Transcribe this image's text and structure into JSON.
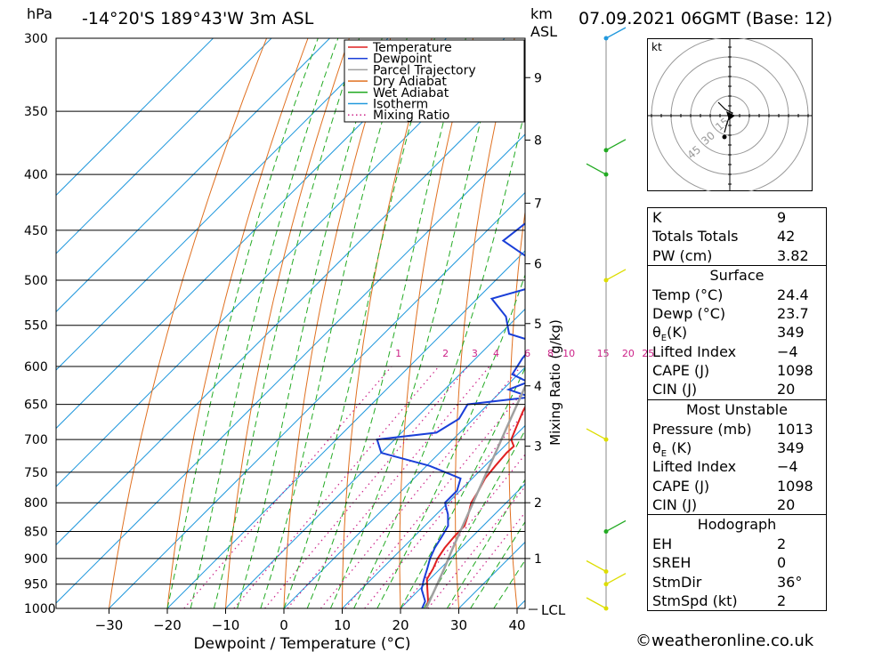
{
  "header": {
    "location": "-14°20'S  189°43'W  3m  ASL",
    "datetime": "07.09.2021  06GMT  (Base: 12)",
    "hpa_unit": "hPa",
    "km_unit": "km",
    "asl_unit": "ASL"
  },
  "chart_data": {
    "type": "line",
    "title": "",
    "xlabel": "Dewpoint / Temperature (°C)",
    "ylabel": "hPa",
    "y2label": "km ASL",
    "mixing_axis_label": "Mixing Ratio (g/kg)",
    "xlim": [
      -40,
      40
    ],
    "ylim": [
      1000,
      300
    ],
    "y_scale": "log",
    "skew": "temperature lines slanted 45°",
    "pressure_ticks": [
      300,
      350,
      400,
      450,
      500,
      550,
      600,
      650,
      700,
      750,
      800,
      850,
      900,
      950,
      1000
    ],
    "temp_ticks": [
      -30,
      -20,
      -10,
      0,
      10,
      20,
      30,
      40
    ],
    "km_ticks": [
      {
        "label": "1",
        "p": 900
      },
      {
        "label": "2",
        "p": 800
      },
      {
        "label": "3",
        "p": 710
      },
      {
        "label": "4",
        "p": 625
      },
      {
        "label": "5",
        "p": 548
      },
      {
        "label": "6",
        "p": 483
      },
      {
        "label": "7",
        "p": 425
      },
      {
        "label": "8",
        "p": 372
      },
      {
        "label": "9",
        "p": 326
      }
    ],
    "lcl_label": "LCL",
    "lcl_pressure": 1002,
    "mixing_ratio_labels": [
      "1",
      "2",
      "3",
      "4",
      "6",
      "8",
      "10",
      "15",
      "20",
      "25"
    ],
    "mixing_ratio_label_pressure": 590,
    "legend": {
      "position": "top-right",
      "entries": [
        {
          "label": "Temperature",
          "color": "#e02020",
          "style": "solid"
        },
        {
          "label": "Dewpoint",
          "color": "#1a3fd8",
          "style": "solid"
        },
        {
          "label": "Parcel Trajectory",
          "color": "#a0a0a0",
          "style": "solid"
        },
        {
          "label": "Dry Adiabat",
          "color": "#e07020",
          "style": "solid"
        },
        {
          "label": "Wet Adiabat",
          "color": "#22aa22",
          "style": "solid"
        },
        {
          "label": "Isotherm",
          "color": "#2299dd",
          "style": "solid"
        },
        {
          "label": "Mixing Ratio",
          "color": "#cc2288",
          "style": "dotted"
        }
      ]
    },
    "series": [
      {
        "name": "Temperature",
        "color": "#e02020",
        "points": [
          [
            1000,
            24.4
          ],
          [
            985,
            23.5
          ],
          [
            960,
            21.3
          ],
          [
            940,
            19.5
          ],
          [
            920,
            18.8
          ],
          [
            900,
            17.8
          ],
          [
            880,
            17.2
          ],
          [
            860,
            16.9
          ],
          [
            840,
            16.8
          ],
          [
            820,
            15.5
          ],
          [
            800,
            14.0
          ],
          [
            780,
            13.2
          ],
          [
            760,
            12.2
          ],
          [
            740,
            11.8
          ],
          [
            720,
            11.5
          ],
          [
            710,
            11.6
          ],
          [
            700,
            10.0
          ],
          [
            680,
            8.6
          ],
          [
            660,
            7.2
          ],
          [
            640,
            6.0
          ],
          [
            620,
            4.5
          ],
          [
            600,
            2.5
          ],
          [
            580,
            0.5
          ],
          [
            560,
            -1.2
          ],
          [
            540,
            -3.0
          ],
          [
            520,
            -5.5
          ],
          [
            500,
            -8.5
          ],
          [
            480,
            -10.2
          ],
          [
            460,
            -12.0
          ],
          [
            440,
            -14.5
          ],
          [
            420,
            -17.5
          ],
          [
            400,
            -21.0
          ],
          [
            380,
            -24.0
          ],
          [
            360,
            -27.0
          ],
          [
            340,
            -30.5
          ],
          [
            320,
            -34.5
          ],
          [
            300,
            -38.5
          ]
        ]
      },
      {
        "name": "Dewpoint",
        "color": "#1a3fd8",
        "points": [
          [
            1000,
            23.7
          ],
          [
            985,
            23.0
          ],
          [
            960,
            20.3
          ],
          [
            940,
            19.0
          ],
          [
            920,
            17.8
          ],
          [
            900,
            16.5
          ],
          [
            880,
            15.5
          ],
          [
            860,
            14.8
          ],
          [
            840,
            14.0
          ],
          [
            820,
            12.0
          ],
          [
            800,
            9.5
          ],
          [
            780,
            9.5
          ],
          [
            760,
            8.0
          ],
          [
            740,
            0.5
          ],
          [
            720,
            -10.0
          ],
          [
            700,
            -13.0
          ],
          [
            690,
            -4.0
          ],
          [
            670,
            -2.5
          ],
          [
            650,
            -3.5
          ],
          [
            640,
            6.0
          ],
          [
            630,
            1.0
          ],
          [
            620,
            3.0
          ],
          [
            610,
            -1.0
          ],
          [
            590,
            -2.0
          ],
          [
            570,
            -2.5
          ],
          [
            560,
            -8.5
          ],
          [
            540,
            -12.0
          ],
          [
            520,
            -17.5
          ],
          [
            500,
            -9.5
          ],
          [
            480,
            -17.0
          ],
          [
            460,
            -25.5
          ],
          [
            440,
            -24.5
          ],
          [
            420,
            -22.0
          ],
          [
            400,
            -27.0
          ],
          [
            380,
            -29.0
          ],
          [
            370,
            -38.0
          ],
          [
            360,
            -29.0
          ],
          [
            340,
            -28.0
          ],
          [
            320,
            -33.0
          ],
          [
            300,
            -39.0
          ]
        ]
      },
      {
        "name": "Parcel Trajectory",
        "color": "#a0a0a0",
        "points": [
          [
            1000,
            24.4
          ],
          [
            960,
            22.6
          ],
          [
            920,
            20.7
          ],
          [
            880,
            18.6
          ],
          [
            840,
            16.5
          ],
          [
            800,
            14.3
          ],
          [
            760,
            12.0
          ],
          [
            720,
            9.6
          ],
          [
            680,
            7.0
          ],
          [
            640,
            4.3
          ],
          [
            600,
            1.4
          ],
          [
            560,
            -1.7
          ],
          [
            520,
            -5.0
          ],
          [
            480,
            -8.7
          ],
          [
            440,
            -12.8
          ],
          [
            400,
            -17.4
          ],
          [
            360,
            -22.8
          ],
          [
            330,
            -27.3
          ],
          [
            300,
            -32.5
          ]
        ]
      }
    ]
  },
  "wind_barbs": {
    "levels_hpa": [
      1000,
      950,
      925,
      850,
      700,
      500,
      400,
      380,
      300
    ]
  },
  "hodograph": {
    "unit": "kt",
    "ring_labels": [
      "15",
      "30",
      "45"
    ]
  },
  "indices": {
    "top": [
      {
        "label": "K",
        "value": "9"
      },
      {
        "label": "Totals Totals",
        "value": "42"
      },
      {
        "label": "PW (cm)",
        "value": "3.82"
      }
    ],
    "surface": {
      "title": "Surface",
      "rows": [
        {
          "label": "Temp (°C)",
          "value": "24.4"
        },
        {
          "label": "Dewp (°C)",
          "value": "23.7"
        },
        {
          "label": "θE(K)",
          "value": "349"
        },
        {
          "label": "Lifted Index",
          "value": "−4"
        },
        {
          "label": "CAPE (J)",
          "value": "1098"
        },
        {
          "label": "CIN (J)",
          "value": "20"
        }
      ]
    },
    "most_unstable": {
      "title": "Most Unstable",
      "rows": [
        {
          "label": "Pressure (mb)",
          "value": "1013"
        },
        {
          "label": "θE (K)",
          "value": "349"
        },
        {
          "label": "Lifted Index",
          "value": "−4"
        },
        {
          "label": "CAPE (J)",
          "value": "1098"
        },
        {
          "label": "CIN (J)",
          "value": "20"
        }
      ]
    },
    "hodograph_stats": {
      "title": "Hodograph",
      "rows": [
        {
          "label": "EH",
          "value": "2"
        },
        {
          "label": "SREH",
          "value": "0"
        },
        {
          "label": "StmDir",
          "value": "36°"
        },
        {
          "label": "StmSpd (kt)",
          "value": "2"
        }
      ]
    }
  },
  "footer": {
    "credit": "©weatheronline.co.uk"
  },
  "colors": {
    "temperature": "#e02020",
    "dewpoint": "#1a3fd8",
    "parcel": "#a0a0a0",
    "dry_adiabat": "#e07020",
    "wet_adiabat": "#22aa22",
    "isotherm": "#2299dd",
    "mixing_ratio": "#cc2288",
    "wind_barb": "#dddd00"
  }
}
